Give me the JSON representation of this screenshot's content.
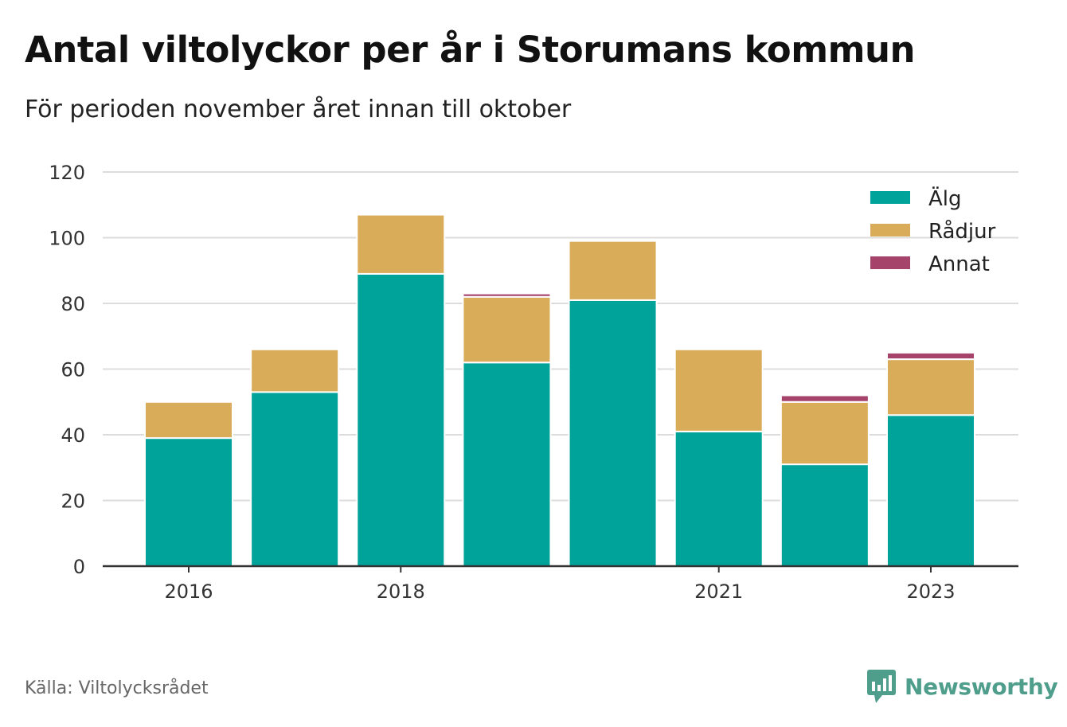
{
  "header": {
    "title": "Antal viltolyckor per år i Storumans kommun",
    "subtitle": "För perioden november året innan till oktober"
  },
  "footer": {
    "source": "Källa: Viltolycksrådet",
    "brand": "Newsworthy",
    "brand_icon": "newsworthy-logo-icon"
  },
  "chart_data": {
    "type": "bar",
    "stacked": true,
    "categories": [
      "2016",
      "2017",
      "2018",
      "2019",
      "2020",
      "2021",
      "2022",
      "2023"
    ],
    "x_tick_labels": [
      "2016",
      "",
      "2018",
      "",
      "",
      "2021",
      "",
      "2023"
    ],
    "series": [
      {
        "name": "Älg",
        "color": "#00a39a",
        "values": [
          39,
          53,
          89,
          62,
          81,
          41,
          31,
          46
        ]
      },
      {
        "name": "Rådjur",
        "color": "#d9ac5a",
        "values": [
          11,
          13,
          18,
          20,
          18,
          25,
          19,
          17
        ]
      },
      {
        "name": "Annat",
        "color": "#a6436a",
        "values": [
          0,
          0,
          0,
          1,
          0,
          0,
          2,
          2
        ]
      }
    ],
    "ylim": [
      0,
      120
    ],
    "yticks": [
      0,
      20,
      40,
      60,
      80,
      100,
      120
    ],
    "grid": true,
    "legend": "top-right",
    "xlabel": "",
    "ylabel": ""
  }
}
